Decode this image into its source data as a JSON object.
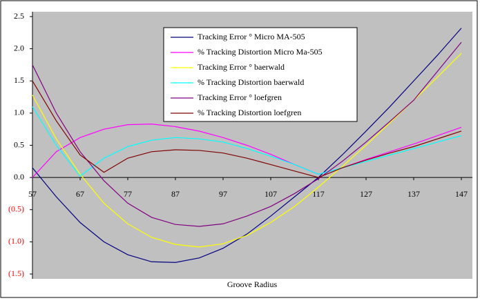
{
  "chart_data": {
    "type": "line",
    "x_label": "Groove Radius",
    "x": [
      57,
      62,
      67,
      72,
      77,
      82,
      87,
      92,
      97,
      102,
      107,
      112,
      117,
      122,
      127,
      132,
      137,
      142,
      147
    ],
    "xlim": [
      57,
      147
    ],
    "xticks": [
      57,
      67,
      77,
      87,
      97,
      107,
      117,
      127,
      137,
      147
    ],
    "ylim": [
      -1.5,
      2.5
    ],
    "yticks": [
      {
        "value": -1.5,
        "label": "(1.5)"
      },
      {
        "value": -1,
        "label": "(1.0)"
      },
      {
        "value": -0.5,
        "label": "(0.5)"
      },
      {
        "value": 0,
        "label": "0.0"
      },
      0.5,
      {
        "value": 1,
        "label": "1.0"
      },
      1.5,
      {
        "value": 2,
        "label": "2.0"
      },
      2.5
    ],
    "negative_label_color": "#ff0000",
    "series": [
      {
        "name": "Tracking Error  ° Micro MA-505",
        "color": "#000080",
        "values": [
          0.15,
          -0.3,
          -0.7,
          -1.0,
          -1.2,
          -1.31,
          -1.32,
          -1.25,
          -1.1,
          -0.88,
          -0.6,
          -0.3,
          0.0,
          0.35,
          0.72,
          1.1,
          1.5,
          1.9,
          2.32
        ]
      },
      {
        "name": "% Tracking Distortion Micro Ma-505",
        "color": "#ff00ff",
        "values": [
          0.0,
          0.4,
          0.62,
          0.75,
          0.82,
          0.83,
          0.79,
          0.72,
          0.62,
          0.5,
          0.36,
          0.2,
          0.05,
          0.15,
          0.28,
          0.4,
          0.52,
          0.65,
          0.78
        ]
      },
      {
        "name": "Tracking Error  ° baerwald",
        "color": "#ffff00",
        "values": [
          1.28,
          0.6,
          0.05,
          -0.4,
          -0.72,
          -0.93,
          -1.04,
          -1.08,
          -1.03,
          -0.9,
          -0.7,
          -0.45,
          -0.15,
          0.17,
          0.5,
          0.85,
          1.2,
          1.56,
          1.93
        ]
      },
      {
        "name": "% Tracking Distortion baerwald",
        "color": "#00ffff",
        "values": [
          1.1,
          0.5,
          0.02,
          0.3,
          0.48,
          0.58,
          0.62,
          0.6,
          0.55,
          0.45,
          0.33,
          0.2,
          0.05,
          0.15,
          0.25,
          0.35,
          0.45,
          0.55,
          0.65
        ]
      },
      {
        "name": "Tracking Error  ° loefgren",
        "color": "#800080",
        "values": [
          1.75,
          1.0,
          0.4,
          -0.05,
          -0.4,
          -0.62,
          -0.73,
          -0.76,
          -0.72,
          -0.6,
          -0.45,
          -0.25,
          -0.02,
          0.25,
          0.55,
          0.87,
          1.2,
          1.65,
          2.1
        ]
      },
      {
        "name": "% Tracking Distortion loefgren",
        "color": "#800000",
        "values": [
          1.5,
          0.88,
          0.35,
          0.08,
          0.3,
          0.4,
          0.43,
          0.42,
          0.38,
          0.3,
          0.2,
          0.1,
          0.0,
          0.15,
          0.27,
          0.38,
          0.48,
          0.6,
          0.72
        ]
      }
    ]
  }
}
